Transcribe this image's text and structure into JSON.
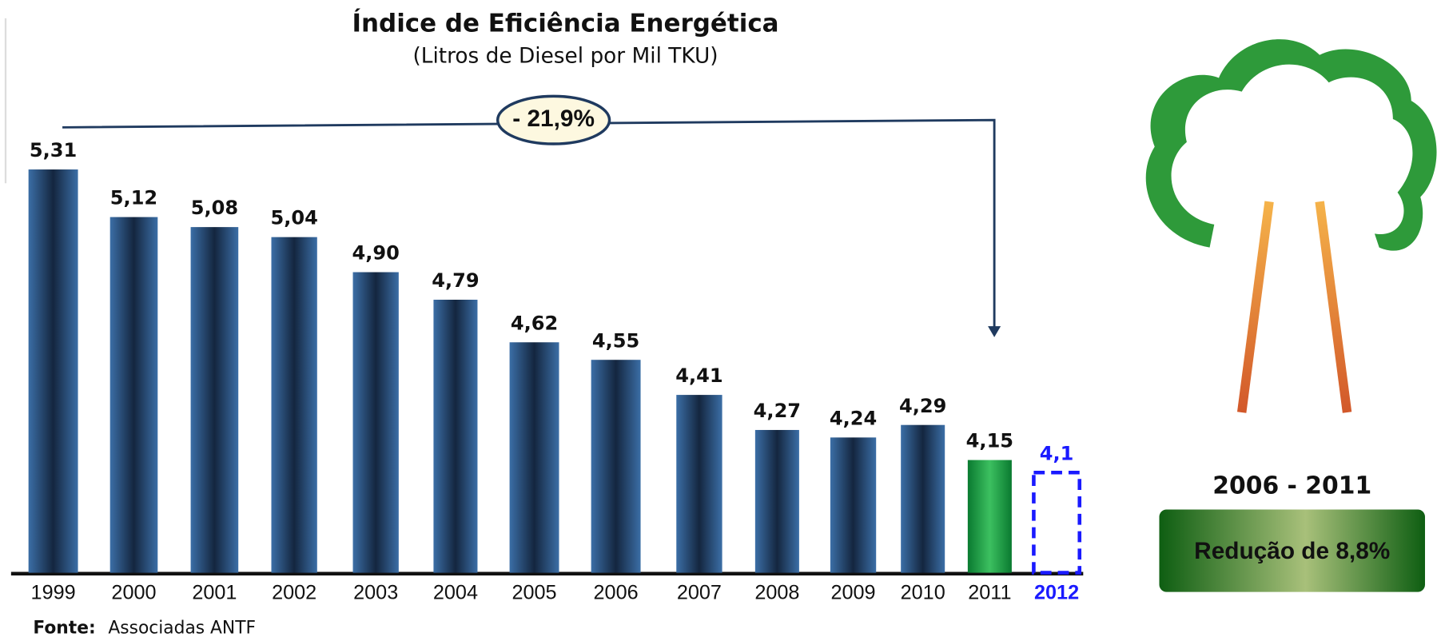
{
  "chart_data": {
    "type": "bar",
    "title": "Índice de Eficiência Energética",
    "subtitle": "(Litros de Diesel por Mil TKU)",
    "categories": [
      "1999",
      "2000",
      "2001",
      "2002",
      "2003",
      "2004",
      "2005",
      "2006",
      "2007",
      "2008",
      "2009",
      "2010",
      "2011",
      "2012"
    ],
    "values": [
      5.31,
      5.12,
      5.08,
      5.04,
      4.9,
      4.79,
      4.62,
      4.55,
      4.41,
      4.27,
      4.24,
      4.29,
      4.15,
      4.1
    ],
    "value_labels": [
      "5,31",
      "5,12",
      "5,08",
      "5,04",
      "4,90",
      "4,79",
      "4,62",
      "4,55",
      "4,41",
      "4,27",
      "4,24",
      "4,29",
      "4,15",
      "4,1"
    ],
    "colors": [
      "#2b5a8e",
      "#2b5a8e",
      "#2b5a8e",
      "#2b5a8e",
      "#2b5a8e",
      "#2b5a8e",
      "#2b5a8e",
      "#2b5a8e",
      "#2b5a8e",
      "#2b5a8e",
      "#2b5a8e",
      "#2b5a8e",
      "#0f9a3e",
      "#1a1aff"
    ],
    "dashed_categories": [
      "2012"
    ],
    "ylim": [
      3.7,
      5.35
    ],
    "annotation": "- 21,9%",
    "side_period": "2006 - 2011",
    "side_note": "Redução de 8,8%",
    "source_label": "Fonte:",
    "source": "Associadas ANTF"
  }
}
